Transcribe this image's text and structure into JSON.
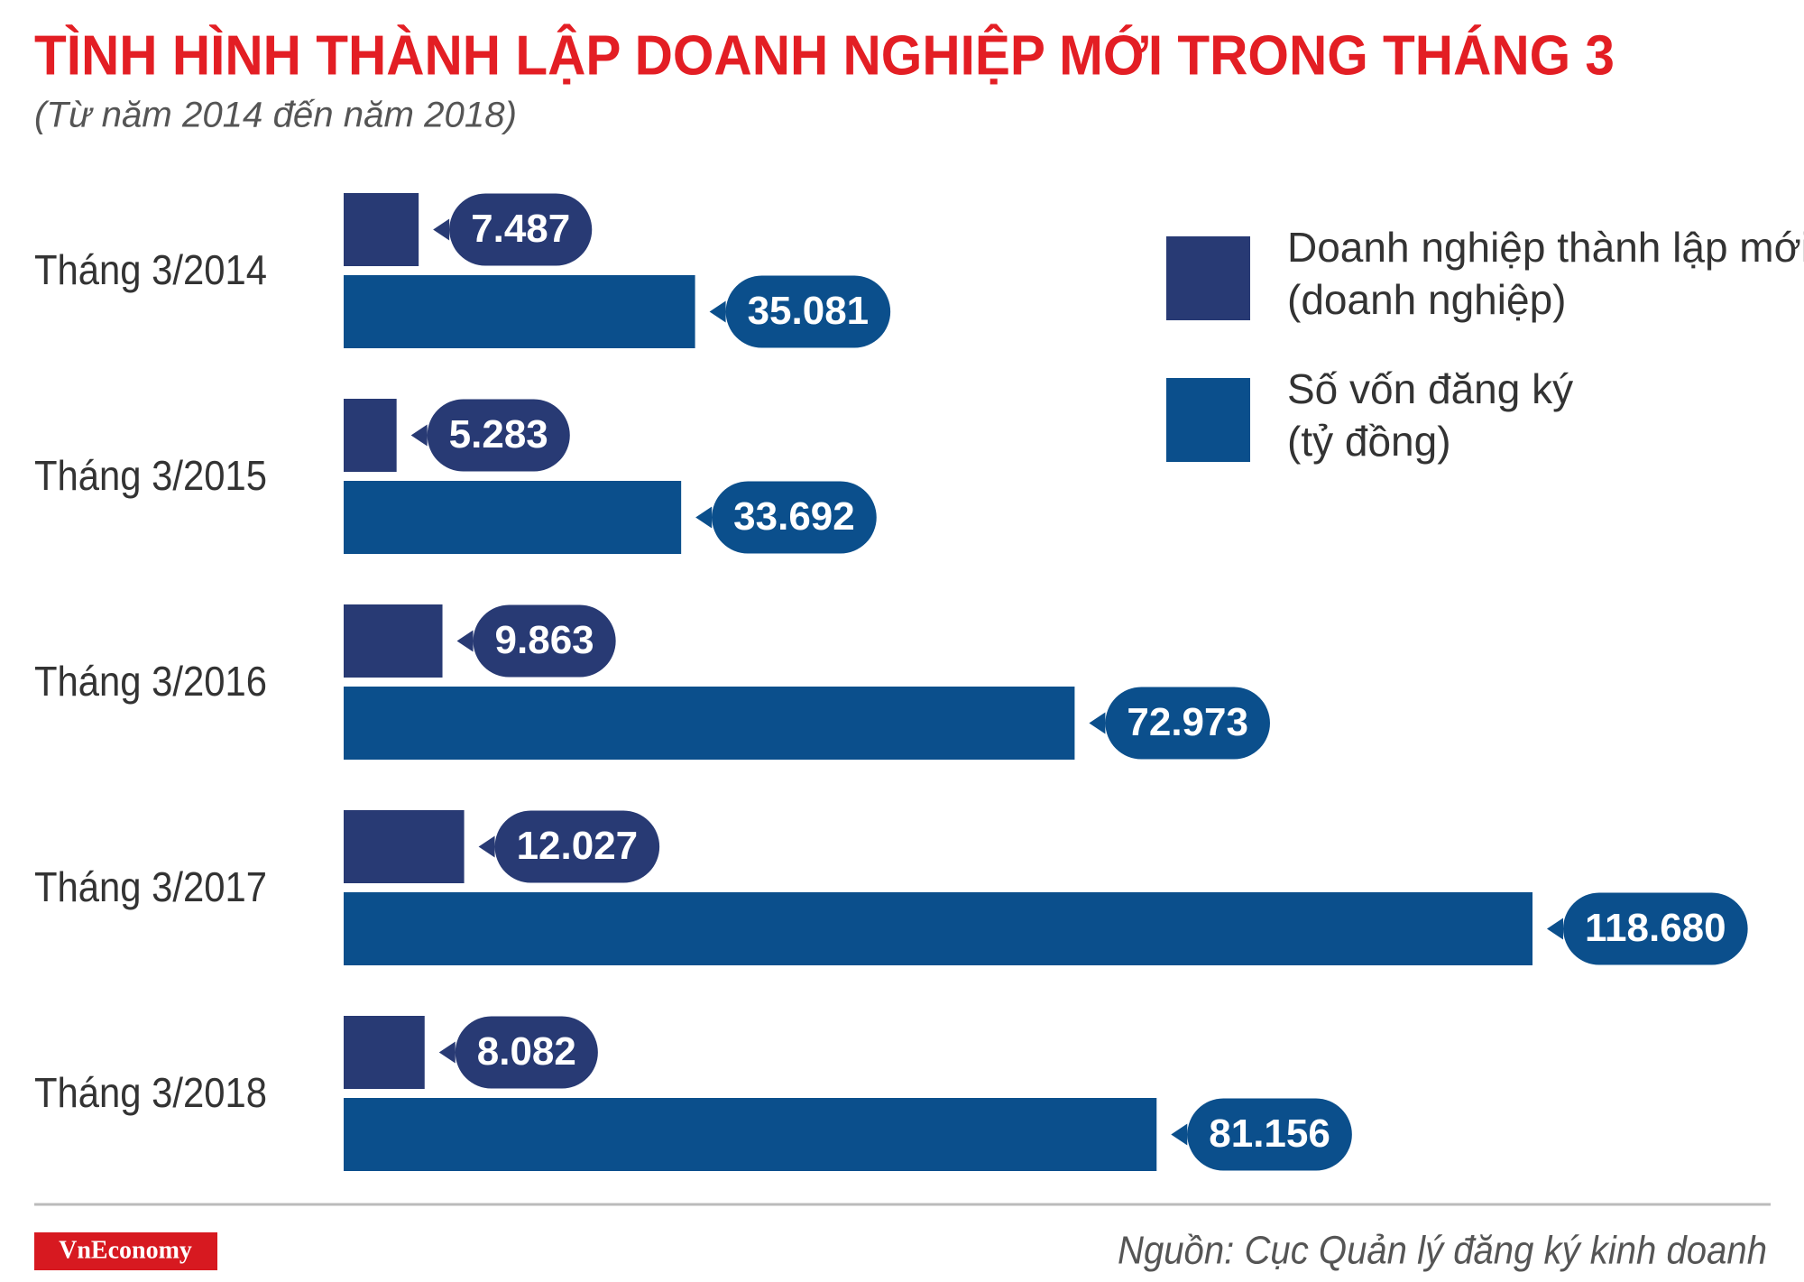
{
  "chart_data": {
    "type": "bar",
    "orientation": "horizontal",
    "title": "TÌNH HÌNH THÀNH LẬP DOANH NGHIỆP MỚI TRONG THÁNG 3",
    "subtitle": "(Từ năm 2014 đến năm 2018)",
    "categories": [
      "Tháng 3/2014",
      "Tháng 3/2015",
      "Tháng 3/2016",
      "Tháng 3/2017",
      "Tháng 3/2018"
    ],
    "series": [
      {
        "name": "Doanh nghiệp thành lập mới (doanh nghiệp)",
        "color": "#283a74",
        "values": [
          7487,
          5283,
          9863,
          12027,
          8082
        ],
        "value_labels": [
          "7.487",
          "5.283",
          "9.863",
          "12.027",
          "8.082"
        ]
      },
      {
        "name": "Số vốn đăng ký (tỷ đồng)",
        "color": "#0b4f8c",
        "values": [
          35081,
          33692,
          72973,
          118680,
          81156
        ],
        "value_labels": [
          "35.081",
          "33.692",
          "72.973",
          "118.680",
          "81.156"
        ]
      }
    ]
  },
  "footer": {
    "logo": "VnEconomy",
    "source": "Nguồn: Cục Quản lý đăng ký kinh doanh"
  }
}
